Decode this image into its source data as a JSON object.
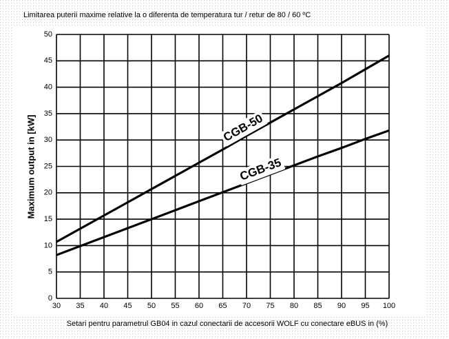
{
  "chart_data": {
    "type": "line",
    "title": "Limitarea puterii maxime relative la o diferenta de temperatura tur / retur de 80 / 60 ºC",
    "x_label": "Setari pentru parametrul GB04 in cazul conectarii de accesorii WOLF cu conectare eBUS in (%)",
    "y_label": "Maximum output in [kW]",
    "x": [
      30,
      35,
      40,
      45,
      50,
      55,
      60,
      65,
      70,
      75,
      80,
      85,
      90,
      95,
      100
    ],
    "series": [
      {
        "name": "CGB-50",
        "color": "#000000",
        "values": [
          10.7,
          13.2,
          15.7,
          18.2,
          20.7,
          23.2,
          25.7,
          28.2,
          30.8,
          33.3,
          35.8,
          38.3,
          40.8,
          43.4,
          46
        ]
      },
      {
        "name": "CGB-35",
        "color": "#000000",
        "values": [
          8.2,
          9.9,
          11.6,
          13.3,
          15,
          16.7,
          18.4,
          20.1,
          21.8,
          23.5,
          25.2,
          26.9,
          28.5,
          30.2,
          31.8
        ]
      }
    ],
    "xlim": [
      30,
      100
    ],
    "xticks": [
      30,
      35,
      40,
      45,
      50,
      55,
      60,
      65,
      70,
      75,
      80,
      85,
      90,
      95,
      100
    ],
    "ylim": [
      0,
      50
    ],
    "yticks": [
      0,
      5,
      10,
      15,
      20,
      25,
      30,
      35,
      40,
      45,
      50
    ],
    "grid": true
  }
}
